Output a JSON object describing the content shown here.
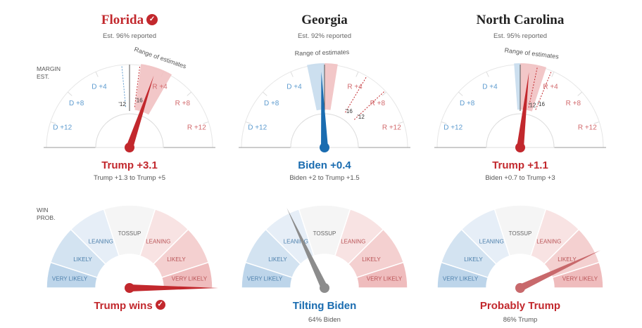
{
  "colors": {
    "red": "#c2282d",
    "blue": "#1a6cb0",
    "gray": "#8c8c8c",
    "red_light": "#f2c9c9",
    "blue_light": "#cfe0ef"
  },
  "side_labels": {
    "margin": "MARGIN\nEST.",
    "win": "WIN\nPROB."
  },
  "margin_tick_labels": {
    "left": [
      "D +4",
      "D +8",
      "D +12"
    ],
    "right": [
      "R +4",
      "R +8",
      "R +12"
    ]
  },
  "range_label": "Range of estimates",
  "prob_labels": {
    "tossup": "TOSSUP",
    "leaning": "LEANING",
    "likely": "LIKELY",
    "very_likely": "VERY LIKELY"
  },
  "states": [
    {
      "name": "Florida",
      "called": true,
      "name_color": "#c2282d",
      "reported": "Est. 96% reported",
      "margin_text": "Trump +3.1",
      "margin_color": "#c2282d",
      "margin_range": "Trump +1.3 to Trump +5",
      "margin_value": 3.1,
      "range_from": 1.3,
      "range_to": 5,
      "needle_color": "#c2282d",
      "prev_labels": [
        "'12",
        "'16"
      ],
      "prev_values": [
        -0.9,
        1.2
      ],
      "win_text": "Trump wins",
      "win_called": true,
      "win_color": "#c2282d",
      "win_sub": "",
      "win_prob_trump": 1.0,
      "win_needle_color": "#c2282d"
    },
    {
      "name": "Georgia",
      "called": false,
      "name_color": "#222222",
      "reported": "Est. 92% reported",
      "margin_text": "Biden +0.4",
      "margin_color": "#1a6cb0",
      "margin_range": "Biden +2 to Trump +1.5",
      "margin_value": -0.4,
      "range_from": -2,
      "range_to": 1.5,
      "needle_color": "#1a6cb0",
      "prev_labels": [
        "'16",
        "'12"
      ],
      "prev_values": [
        5.1,
        7.8
      ],
      "win_text": "Tilting Biden",
      "win_called": false,
      "win_color": "#1a6cb0",
      "win_sub": "64% Biden",
      "win_prob_trump": 0.36,
      "win_needle_color": "#8c8c8c"
    },
    {
      "name": "North Carolina",
      "called": false,
      "name_color": "#222222",
      "reported": "Est. 95% reported",
      "margin_text": "Trump +1.1",
      "margin_color": "#c2282d",
      "margin_range": "Biden +0.7 to Trump +3",
      "margin_value": 1.1,
      "range_from": -0.7,
      "range_to": 3,
      "needle_color": "#c2282d",
      "prev_labels": [
        "'12",
        "'16"
      ],
      "prev_values": [
        2.0,
        3.7
      ],
      "win_text": "Probably Trump",
      "win_called": false,
      "win_color": "#c2282d",
      "win_sub": "86% Trump",
      "win_prob_trump": 0.86,
      "win_needle_color": "#c8696c"
    }
  ]
}
